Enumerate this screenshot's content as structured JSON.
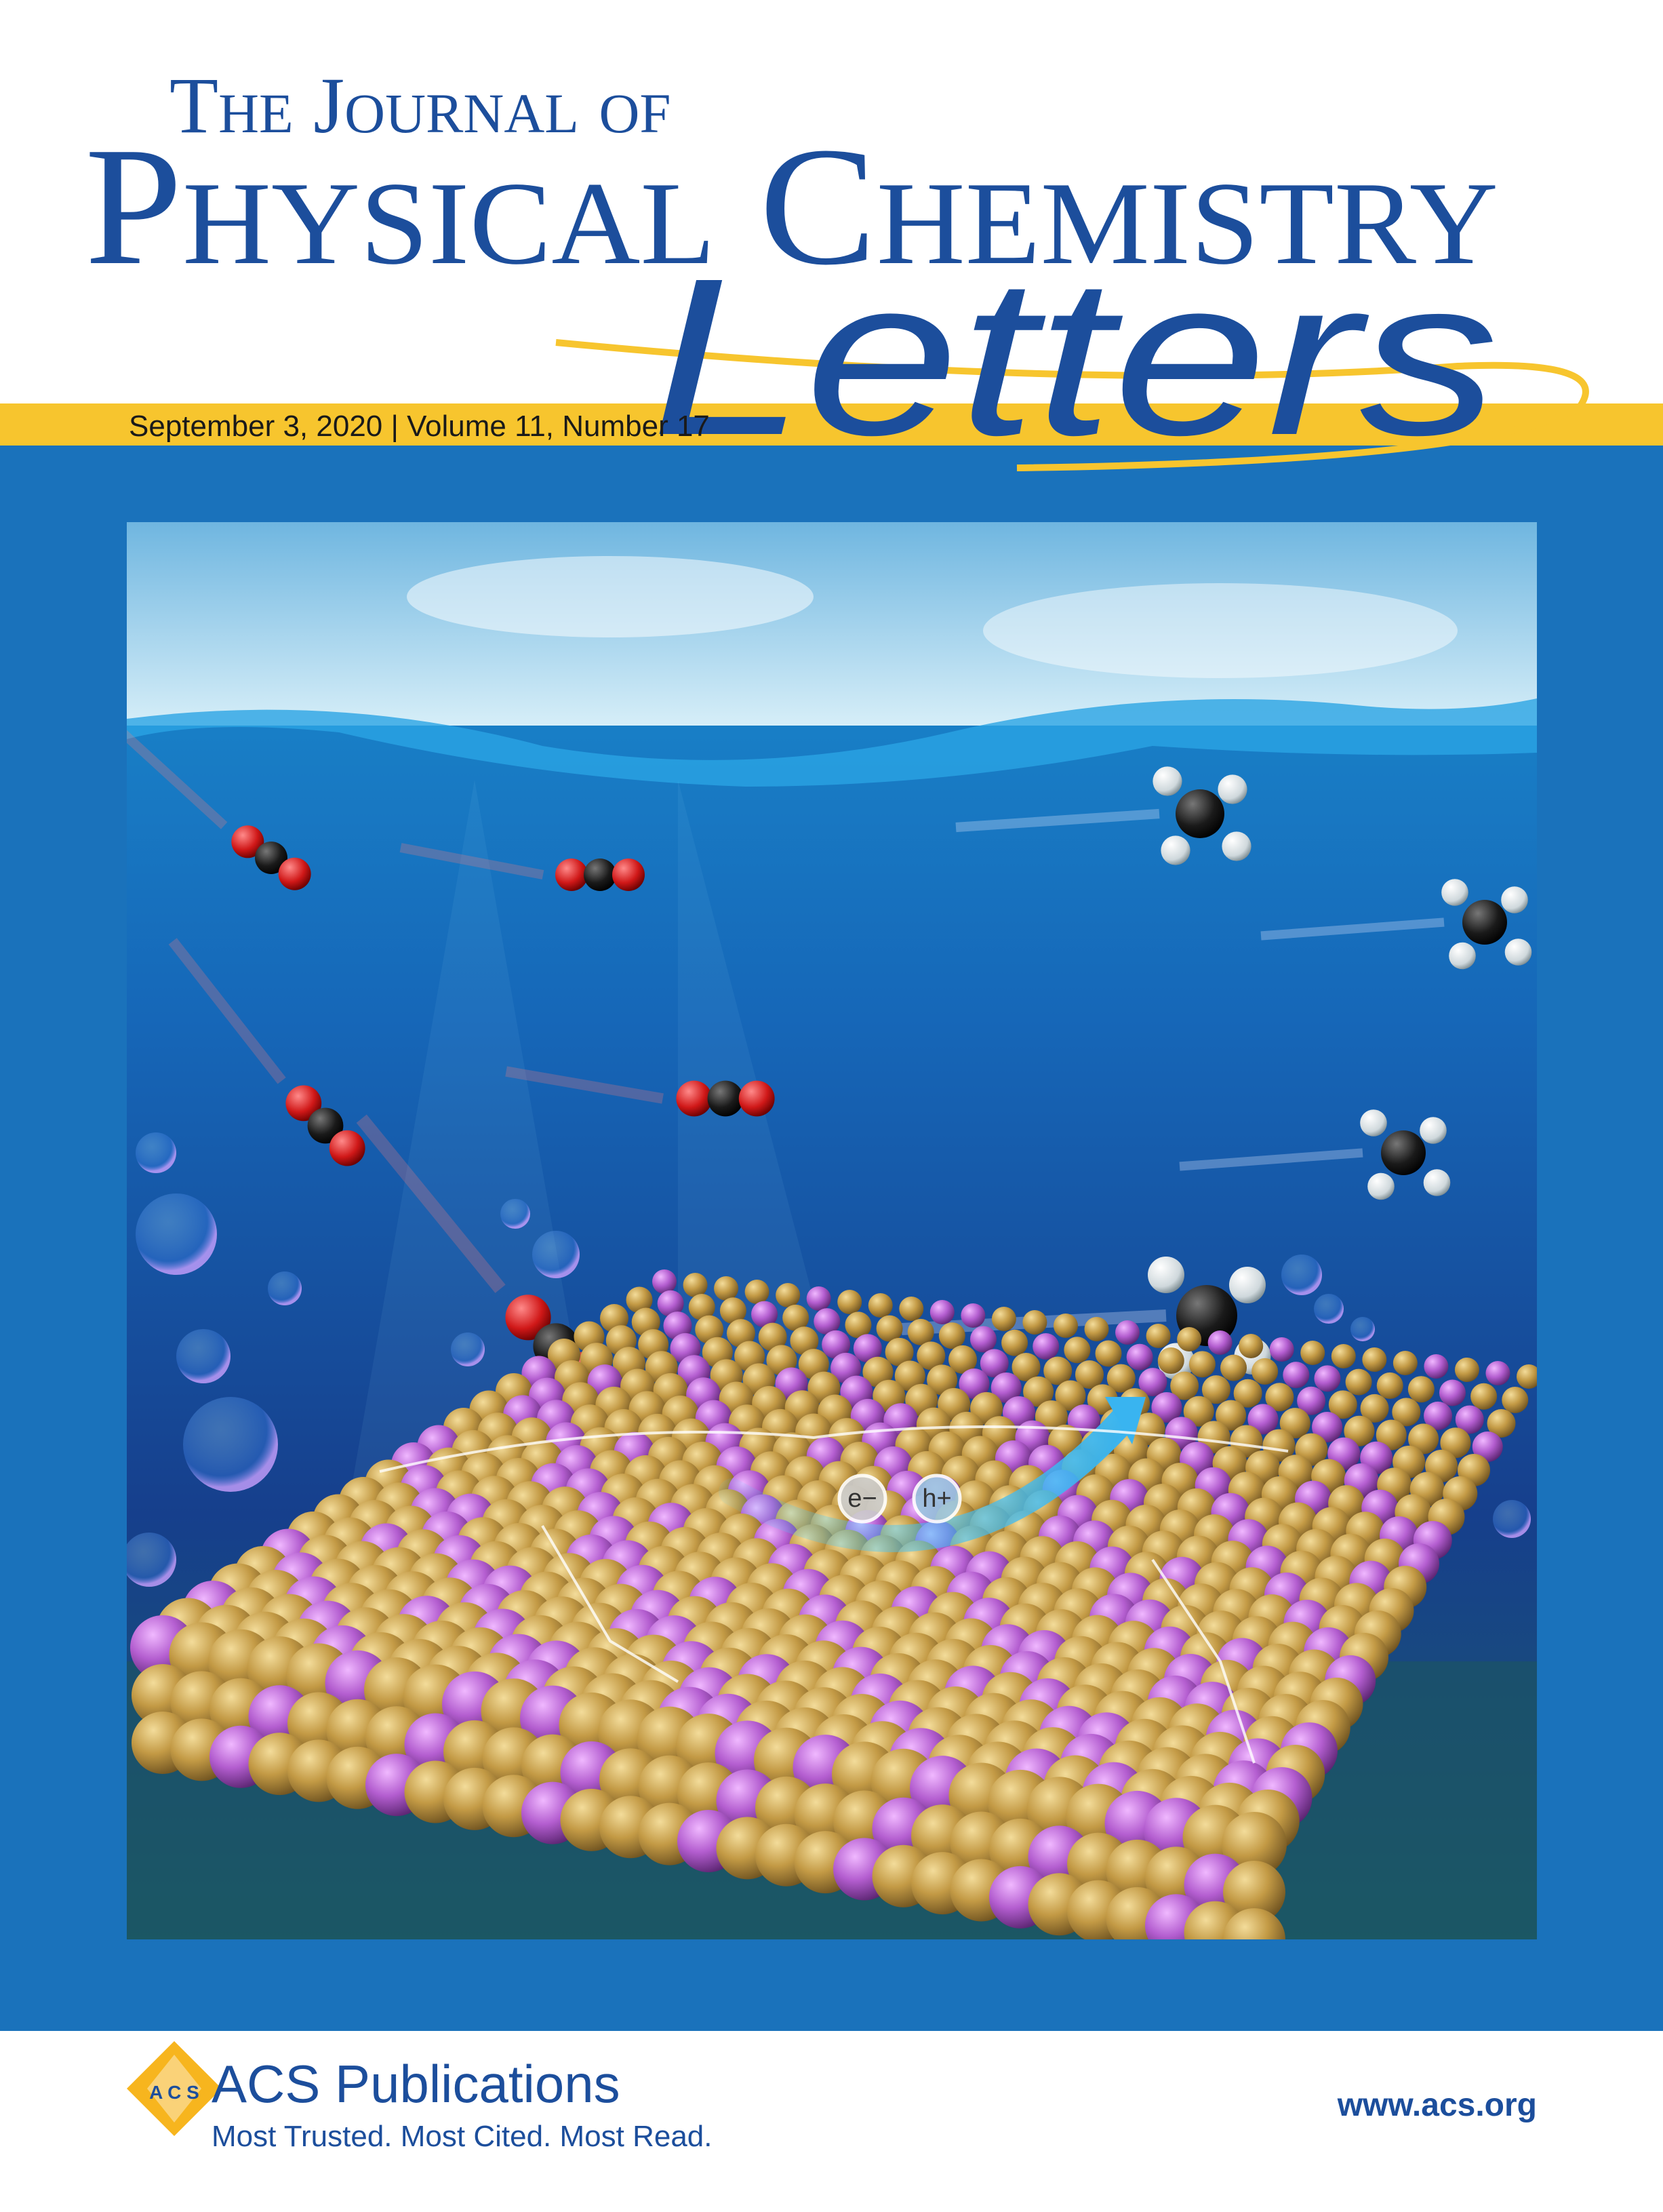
{
  "header": {
    "title_line1": "The Journal of",
    "title_line2": "Physical Chemistry",
    "title_line3": "Letters",
    "issue": "September 3, 2020 | Volume 11, Number 17"
  },
  "illustration": {
    "electron_label": "e−",
    "hole_label": "h+"
  },
  "footer": {
    "publisher": "ACS Publications",
    "tagline": "Most Trusted. Most Cited. Most Read.",
    "website": "www.acs.org"
  }
}
